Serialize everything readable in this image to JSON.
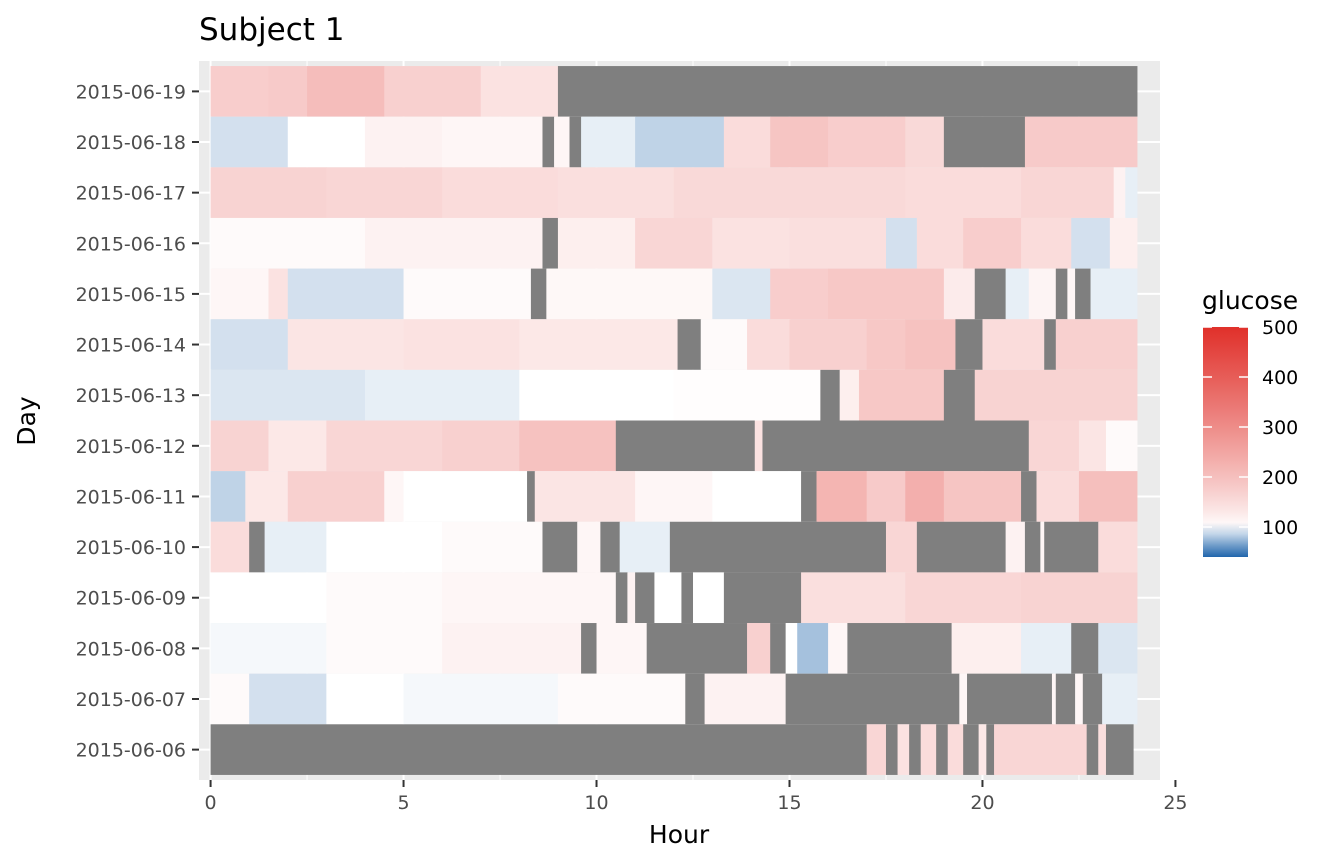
{
  "chart_data": {
    "type": "heatmap",
    "title": "Subject 1",
    "xlabel": "Hour",
    "ylabel": "Day",
    "xlim": [
      -0.3,
      24.6
    ],
    "x_ticks": [
      0,
      5,
      10,
      15,
      20,
      25
    ],
    "days": [
      "2015-06-19",
      "2015-06-18",
      "2015-06-17",
      "2015-06-16",
      "2015-06-15",
      "2015-06-14",
      "2015-06-13",
      "2015-06-12",
      "2015-06-11",
      "2015-06-10",
      "2015-06-09",
      "2015-06-08",
      "2015-06-07",
      "2015-06-06"
    ],
    "grid": true,
    "na_color": "#7f7f7f",
    "legend": {
      "title": "glucose",
      "placement": "right",
      "ticks": [
        100,
        200,
        300,
        400,
        500
      ],
      "range": [
        40,
        500
      ],
      "colors": {
        "low": "#2166ac",
        "mid": "#ffffff",
        "high": "#e0302a",
        "midpoint": 100
      }
    },
    "rows": [
      {
        "day": "2015-06-19",
        "segments": [
          [
            0,
            1.5,
            175
          ],
          [
            1.5,
            2.5,
            180
          ],
          [
            2.5,
            4.5,
            205
          ],
          [
            4.5,
            7,
            170
          ],
          [
            7,
            9,
            140
          ],
          [
            9,
            24,
            null
          ]
        ]
      },
      {
        "day": "2015-06-18",
        "segments": [
          [
            0,
            2,
            90
          ],
          [
            2,
            4,
            100
          ],
          [
            4,
            6,
            115
          ],
          [
            6,
            8.6,
            110
          ],
          [
            8.6,
            8.9,
            null
          ],
          [
            8.9,
            9.3,
            110
          ],
          [
            9.3,
            9.6,
            null
          ],
          [
            9.6,
            11,
            95
          ],
          [
            11,
            13.3,
            85
          ],
          [
            13.3,
            14.5,
            150
          ],
          [
            14.5,
            16,
            190
          ],
          [
            16,
            18,
            175
          ],
          [
            18,
            19,
            155
          ],
          [
            19,
            21.1,
            null
          ],
          [
            21.1,
            24,
            180
          ]
        ]
      },
      {
        "day": "2015-06-17",
        "segments": [
          [
            0,
            3,
            165
          ],
          [
            3,
            6,
            160
          ],
          [
            6,
            9,
            150
          ],
          [
            9,
            12,
            145
          ],
          [
            12,
            18,
            155
          ],
          [
            18,
            21,
            150
          ],
          [
            21,
            23.4,
            160
          ],
          [
            23.4,
            23.7,
            115
          ],
          [
            23.7,
            24,
            95
          ]
        ]
      },
      {
        "day": "2015-06-16",
        "segments": [
          [
            0,
            4,
            105
          ],
          [
            4,
            8.6,
            115
          ],
          [
            8.6,
            9,
            null
          ],
          [
            9,
            11,
            120
          ],
          [
            11,
            13,
            160
          ],
          [
            13,
            15,
            140
          ],
          [
            15,
            17.5,
            145
          ],
          [
            17.5,
            18.3,
            90
          ],
          [
            18.3,
            19.5,
            150
          ],
          [
            19.5,
            21,
            175
          ],
          [
            21,
            22.3,
            150
          ],
          [
            22.3,
            23.3,
            90
          ],
          [
            23.3,
            24,
            120
          ]
        ]
      },
      {
        "day": "2015-06-15",
        "segments": [
          [
            0,
            1.5,
            110
          ],
          [
            1.5,
            2,
            140
          ],
          [
            2,
            5,
            90
          ],
          [
            5,
            8.3,
            105
          ],
          [
            8.3,
            8.7,
            null
          ],
          [
            8.7,
            13,
            108
          ],
          [
            13,
            14.5,
            92
          ],
          [
            14.5,
            16,
            175
          ],
          [
            16,
            19,
            185
          ],
          [
            19,
            19.8,
            125
          ],
          [
            19.8,
            20.6,
            null
          ],
          [
            20.6,
            21.2,
            95
          ],
          [
            21.2,
            21.9,
            112
          ],
          [
            21.9,
            22.2,
            null
          ],
          [
            22.2,
            22.4,
            110
          ],
          [
            22.4,
            22.8,
            null
          ],
          [
            22.8,
            24,
            95
          ]
        ]
      },
      {
        "day": "2015-06-14",
        "segments": [
          [
            0,
            2,
            90
          ],
          [
            2,
            5,
            135
          ],
          [
            5,
            8,
            140
          ],
          [
            8,
            12.1,
            130
          ],
          [
            12.1,
            12.7,
            null
          ],
          [
            12.7,
            13.9,
            105
          ],
          [
            13.9,
            15,
            150
          ],
          [
            15,
            17,
            170
          ],
          [
            17,
            18,
            185
          ],
          [
            18,
            19.3,
            195
          ],
          [
            19.3,
            20,
            null
          ],
          [
            20,
            21.6,
            150
          ],
          [
            21.6,
            21.9,
            null
          ],
          [
            21.9,
            24,
            170
          ]
        ]
      },
      {
        "day": "2015-06-13",
        "segments": [
          [
            0,
            4,
            92
          ],
          [
            4,
            8,
            95
          ],
          [
            8,
            12,
            100
          ],
          [
            12,
            15.8,
            102
          ],
          [
            15.8,
            16.3,
            null
          ],
          [
            16.3,
            16.8,
            120
          ],
          [
            16.8,
            19,
            185
          ],
          [
            19,
            19.8,
            null
          ],
          [
            19.8,
            24,
            165
          ]
        ]
      },
      {
        "day": "2015-06-12",
        "segments": [
          [
            0,
            1.5,
            165
          ],
          [
            1.5,
            3,
            130
          ],
          [
            3,
            6,
            160
          ],
          [
            6,
            8,
            170
          ],
          [
            8,
            10.5,
            195
          ],
          [
            10.5,
            14.1,
            null
          ],
          [
            14.1,
            14.3,
            140
          ],
          [
            14.3,
            21.2,
            null
          ],
          [
            21.2,
            22.5,
            160
          ],
          [
            22.5,
            23.2,
            135
          ],
          [
            23.2,
            24,
            105
          ]
        ]
      },
      {
        "day": "2015-06-11",
        "segments": [
          [
            0,
            0.9,
            85
          ],
          [
            0.9,
            2,
            130
          ],
          [
            2,
            4.5,
            170
          ],
          [
            4.5,
            5,
            110
          ],
          [
            5,
            8.2,
            100
          ],
          [
            8.2,
            8.4,
            null
          ],
          [
            8.4,
            11,
            135
          ],
          [
            11,
            13,
            110
          ],
          [
            13,
            15.3,
            100
          ],
          [
            15.3,
            15.7,
            null
          ],
          [
            15.7,
            17,
            220
          ],
          [
            17,
            18,
            180
          ],
          [
            18,
            19,
            230
          ],
          [
            19,
            21,
            190
          ],
          [
            21,
            21.4,
            null
          ],
          [
            21.4,
            22.5,
            150
          ],
          [
            22.5,
            24,
            200
          ]
        ]
      },
      {
        "day": "2015-06-10",
        "segments": [
          [
            0,
            1,
            150
          ],
          [
            1,
            1.4,
            null
          ],
          [
            1.4,
            3,
            95
          ],
          [
            3,
            6,
            100
          ],
          [
            6,
            8.6,
            105
          ],
          [
            8.6,
            9.5,
            null
          ],
          [
            9.5,
            10.1,
            110
          ],
          [
            10.1,
            10.6,
            null
          ],
          [
            10.6,
            11.9,
            95
          ],
          [
            11.9,
            17.5,
            null
          ],
          [
            17.5,
            18.3,
            160
          ],
          [
            18.3,
            20.6,
            null
          ],
          [
            20.6,
            21.1,
            115
          ],
          [
            21.1,
            21.5,
            null
          ],
          [
            21.5,
            21.6,
            110
          ],
          [
            21.6,
            23,
            null
          ],
          [
            23,
            24,
            150
          ]
        ]
      },
      {
        "day": "2015-06-09",
        "segments": [
          [
            0,
            3,
            100
          ],
          [
            3,
            6,
            105
          ],
          [
            6,
            10.5,
            110
          ],
          [
            10.5,
            10.8,
            null
          ],
          [
            10.8,
            11,
            115
          ],
          [
            11,
            11.5,
            null
          ],
          [
            11.5,
            12.2,
            100
          ],
          [
            12.2,
            12.5,
            null
          ],
          [
            12.5,
            13.3,
            100
          ],
          [
            13.3,
            15.3,
            null
          ],
          [
            15.3,
            18,
            145
          ],
          [
            18,
            21,
            160
          ],
          [
            21,
            24,
            165
          ]
        ]
      },
      {
        "day": "2015-06-08",
        "segments": [
          [
            0,
            3,
            98
          ],
          [
            3,
            6,
            105
          ],
          [
            6,
            9.6,
            115
          ],
          [
            9.6,
            10,
            null
          ],
          [
            10,
            11.3,
            110
          ],
          [
            11.3,
            13.9,
            null
          ],
          [
            13.9,
            14.5,
            170
          ],
          [
            14.5,
            14.9,
            null
          ],
          [
            14.9,
            15.2,
            100
          ],
          [
            15.2,
            16,
            78
          ],
          [
            16,
            16.5,
            110
          ],
          [
            16.5,
            19.2,
            null
          ],
          [
            19.2,
            21,
            120
          ],
          [
            21,
            22.3,
            95
          ],
          [
            22.3,
            23,
            null
          ],
          [
            23,
            24,
            92
          ]
        ]
      },
      {
        "day": "2015-06-07",
        "segments": [
          [
            0,
            1,
            105
          ],
          [
            1,
            3,
            90
          ],
          [
            3,
            5,
            100
          ],
          [
            5,
            9,
            98
          ],
          [
            9,
            12.3,
            105
          ],
          [
            12.3,
            12.8,
            null
          ],
          [
            12.8,
            14.9,
            115
          ],
          [
            14.9,
            19.4,
            null
          ],
          [
            19.4,
            19.6,
            110
          ],
          [
            19.6,
            21.8,
            null
          ],
          [
            21.8,
            21.9,
            110
          ],
          [
            21.9,
            22.4,
            null
          ],
          [
            22.4,
            22.6,
            110
          ],
          [
            22.6,
            23.1,
            null
          ],
          [
            23.1,
            24,
            95
          ]
        ]
      },
      {
        "day": "2015-06-06",
        "segments": [
          [
            0,
            17,
            null
          ],
          [
            17,
            17.5,
            160
          ],
          [
            17.5,
            17.8,
            null
          ],
          [
            17.8,
            18.1,
            140
          ],
          [
            18.1,
            18.4,
            null
          ],
          [
            18.4,
            18.8,
            150
          ],
          [
            18.8,
            19.1,
            null
          ],
          [
            19.1,
            19.5,
            150
          ],
          [
            19.5,
            19.9,
            null
          ],
          [
            19.9,
            20.1,
            130
          ],
          [
            20.1,
            20.3,
            null
          ],
          [
            20.3,
            22.7,
            160
          ],
          [
            22.7,
            23,
            null
          ],
          [
            23,
            23.2,
            145
          ],
          [
            23.2,
            23.9,
            null
          ]
        ]
      }
    ]
  }
}
